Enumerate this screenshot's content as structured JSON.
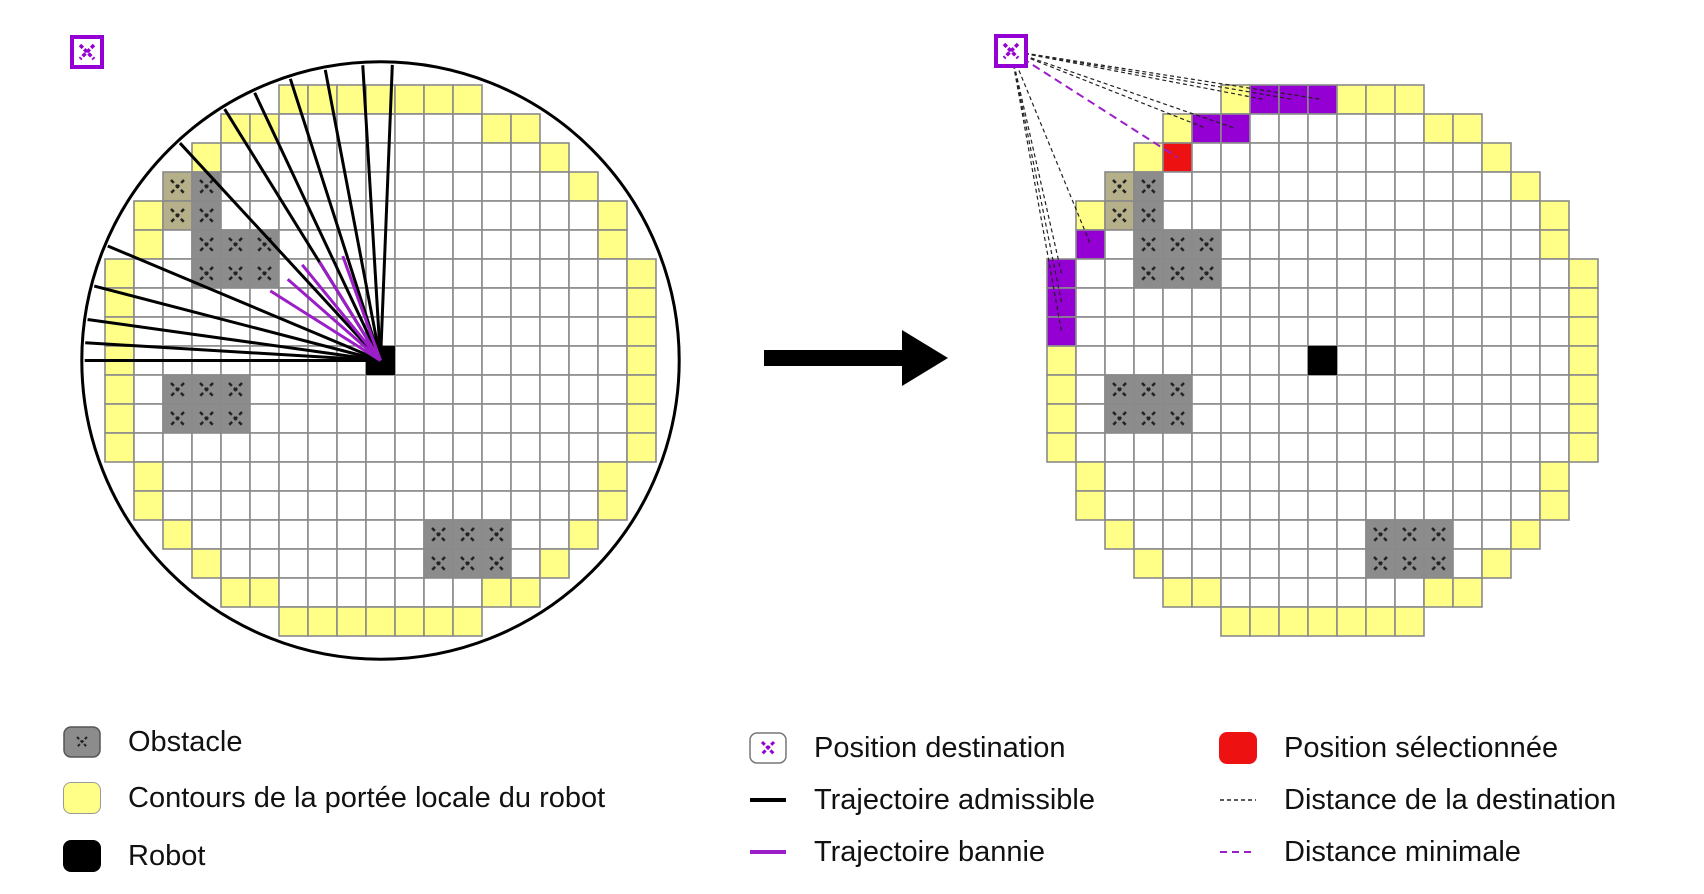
{
  "colors": {
    "contour": "#ffff88",
    "obstacle": "#8c8c8c",
    "obstacle_tan": "#b5b08a",
    "robot": "#000000",
    "destination": "#9400d3",
    "selected": "#ee1111",
    "grid_line": "#8a8a8a",
    "admissible": "#000000",
    "banned": "#9b1ec8"
  },
  "icons": {
    "destination": "destination-cross-icon",
    "obstacle": "obstacle-cross-icon",
    "arrow": "right-arrow-icon"
  },
  "legend": {
    "obstacle": "Obstacle",
    "contour": "Contours de la portée locale du robot",
    "robot": "Robot",
    "destination": "Position destination",
    "admissible": "Trajectoire admissible",
    "banned": "Trajectoire bannie",
    "selected": "Position sélectionnée",
    "distance": "Distance de la destination",
    "min_distance": "Distance minimale"
  }
}
